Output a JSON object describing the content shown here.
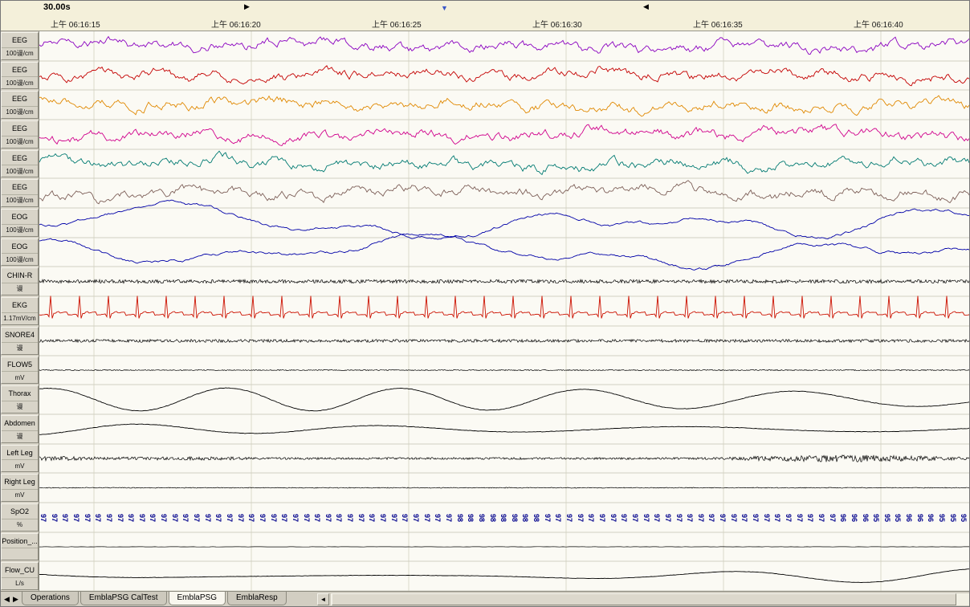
{
  "window": {
    "duration_label": "30.00s"
  },
  "timeline": {
    "ticks": [
      "上午 06:16:15",
      "上午 06:16:20",
      "上午 06:16:25",
      "上午 06:16:30",
      "上午 06:16:35",
      "上午 06:16:40"
    ]
  },
  "markers": {
    "right": "▶",
    "down": "▼",
    "left": "◀"
  },
  "channels": [
    {
      "name": "EEG",
      "unit": "100谩/cm",
      "color": "#8a00c0",
      "type": "eeg",
      "seed": 11,
      "amp": 8
    },
    {
      "name": "EEG",
      "unit": "100谩/cm",
      "color": "#c40000",
      "type": "eeg",
      "seed": 22,
      "amp": 8
    },
    {
      "name": "EEG",
      "unit": "100谩/cm",
      "color": "#e08800",
      "type": "eeg",
      "seed": 33,
      "amp": 8
    },
    {
      "name": "EEG",
      "unit": "100谩/cm",
      "color": "#d0008c",
      "type": "eeg",
      "seed": 44,
      "amp": 8
    },
    {
      "name": "EEG",
      "unit": "100谩/cm",
      "color": "#007a72",
      "type": "eeg",
      "seed": 55,
      "amp": 8
    },
    {
      "name": "EEG",
      "unit": "100谩/cm",
      "color": "#7d5f58",
      "type": "eeg",
      "seed": 66,
      "amp": 8
    },
    {
      "name": "EOG",
      "unit": "100谩/cm",
      "color": "#0000a8",
      "type": "eog",
      "seed": 77,
      "amp": 14
    },
    {
      "name": "EOG",
      "unit": "100谩/cm",
      "color": "#0000a8",
      "type": "eog",
      "seed": 88,
      "amp": 14
    },
    {
      "name": "CHIN-R",
      "unit": "谩",
      "color": "#000000",
      "type": "noise",
      "seed": 99,
      "amp": 2.2
    },
    {
      "name": "EKG",
      "unit": "1.17mV/cm",
      "color": "#cc1100",
      "type": "ekg",
      "seed": 101,
      "amp": 26
    },
    {
      "name": "SNORE4",
      "unit": "谩",
      "color": "#000000",
      "type": "noise",
      "seed": 111,
      "amp": 1.8
    },
    {
      "name": "FLOW5",
      "unit": "mV",
      "color": "#000000",
      "type": "noise",
      "seed": 121,
      "amp": 0.6
    },
    {
      "name": "Thorax",
      "unit": "谩",
      "color": "#000000",
      "type": "resp",
      "seed": 131,
      "amp": 13
    },
    {
      "name": "Abdomen",
      "unit": "谩",
      "color": "#000000",
      "type": "resp",
      "seed": 141,
      "amp": 9
    },
    {
      "name": "Left Leg",
      "unit": "mV",
      "color": "#000000",
      "type": "burst",
      "seed": 151,
      "amp": 3.5
    },
    {
      "name": "Right Leg",
      "unit": "mV",
      "color": "#000000",
      "type": "noise",
      "seed": 161,
      "amp": 0.5
    },
    {
      "name": "SpO2",
      "unit": "%",
      "color": "#00008c",
      "type": "spo2",
      "seed": 0,
      "amp": 0
    },
    {
      "name": "Position_...",
      "unit": "",
      "color": "#000000",
      "type": "flat",
      "seed": 171,
      "amp": 0.2
    },
    {
      "name": "Flow_CU",
      "unit": "L/s",
      "color": "#000000",
      "type": "flow",
      "seed": 181,
      "amp": 9
    }
  ],
  "spo2": {
    "segments": [
      [
        97,
        38
      ],
      [
        98,
        8
      ],
      [
        97,
        27
      ],
      [
        96,
        3
      ],
      [
        95,
        3
      ],
      [
        96,
        3
      ],
      [
        95,
        3
      ]
    ]
  },
  "tabbar": {
    "nav_left": "◀",
    "nav_right": "▶",
    "scroll_left": "◄",
    "tabs": [
      {
        "label": "Operations",
        "active": false
      },
      {
        "label": "EmblaPSG CalTest",
        "active": false
      },
      {
        "label": "EmblaPSG",
        "active": true
      },
      {
        "label": "EmblaResp",
        "active": false
      }
    ]
  }
}
